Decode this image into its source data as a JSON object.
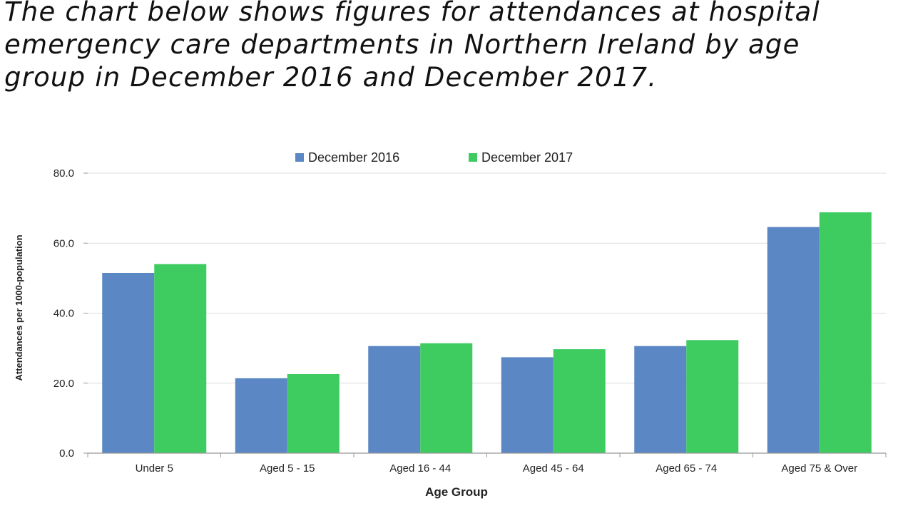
{
  "prompt": {
    "lines": [
      "The chart below shows figures for attendances at hospital",
      "emergency care departments in Northern Ireland by age",
      "group in December 2016 and December 2017."
    ]
  },
  "colors": {
    "series_2016": "#5b87c5",
    "series_2017": "#3ecb60",
    "grid": "#dcdcdc",
    "axis": "#999999",
    "text": "#222222"
  },
  "chart_data": {
    "type": "bar",
    "categories": [
      "Under 5",
      "Aged 5 - 15",
      "Aged 16 - 44",
      "Aged 45 - 64",
      "Aged 65 - 74",
      "Aged 75 & Over"
    ],
    "series": [
      {
        "name": "December 2016",
        "values": [
          51.5,
          21.4,
          30.6,
          27.4,
          30.6,
          64.6
        ]
      },
      {
        "name": "December 2017",
        "values": [
          54.0,
          22.6,
          31.4,
          29.7,
          32.3,
          68.8
        ]
      }
    ],
    "xlabel": "Age Group",
    "ylabel": "Attendances per 1000-population",
    "ylim": [
      0,
      80
    ],
    "yticks": [
      "0.0",
      "20.0",
      "40.0",
      "60.0",
      "80.0"
    ],
    "grid": true,
    "legend": "top-center"
  }
}
